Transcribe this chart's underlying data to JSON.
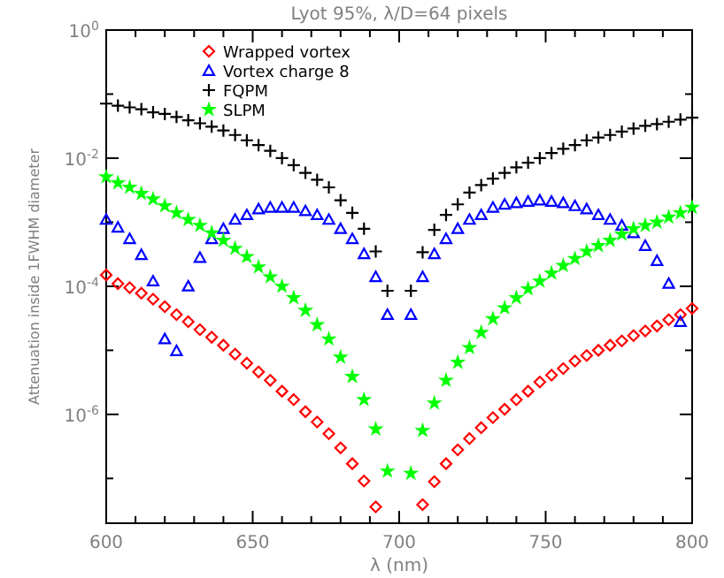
{
  "chart_data": {
    "type": "scatter",
    "title": "Lyot 95%, λ/D=64 pixels",
    "xlabel": "λ (nm)",
    "ylabel": "Attenuation inside 1FWHM diameter",
    "x": [
      600,
      604,
      608,
      612,
      616,
      620,
      624,
      628,
      632,
      636,
      640,
      644,
      648,
      652,
      656,
      660,
      664,
      668,
      672,
      676,
      680,
      684,
      688,
      692,
      696,
      704,
      708,
      712,
      716,
      720,
      724,
      728,
      732,
      736,
      740,
      744,
      748,
      752,
      756,
      760,
      764,
      768,
      772,
      776,
      780,
      784,
      788,
      792,
      796,
      800
    ],
    "series": [
      {
        "name": "Wrapped vortex",
        "color": "#ff0000",
        "marker": "diamond",
        "values": [
          0.00015,
          0.00011,
          9.5e-05,
          7.8e-05,
          6.3e-05,
          4.8e-05,
          3.6e-05,
          2.8e-05,
          2.1e-05,
          1.6e-05,
          1.2e-05,
          8.7e-06,
          6.3e-06,
          4.6e-06,
          3.4e-06,
          2.3e-06,
          1.7e-06,
          1.1e-06,
          7.6e-07,
          5e-07,
          3e-07,
          1.7e-07,
          9.1e-08,
          3.6e-08,
          null,
          null,
          3.9e-08,
          8.9e-08,
          1.7e-07,
          2.8e-07,
          4.2e-07,
          6.2e-07,
          8.9e-07,
          1.2e-06,
          1.7e-06,
          2.3e-06,
          3.2e-06,
          4.1e-06,
          5.2e-06,
          6.8e-06,
          8.3e-06,
          1e-05,
          1.2e-05,
          1.4e-05,
          1.7e-05,
          2e-05,
          2.4e-05,
          3e-05,
          3.6e-05,
          4.5e-05
        ]
      },
      {
        "name": "Vortex charge 8",
        "color": "#0000ff",
        "marker": "triangle",
        "values": [
          0.0011,
          0.00083,
          0.00055,
          0.00031,
          0.00012,
          1.5e-05,
          9.8e-06,
          0.0001,
          0.00028,
          0.00055,
          0.00079,
          0.0011,
          0.0013,
          0.0016,
          0.0017,
          0.0017,
          0.0017,
          0.0015,
          0.0013,
          0.0011,
          0.00079,
          0.00055,
          0.00032,
          0.00014,
          3.6e-05,
          3.6e-05,
          0.00014,
          0.00032,
          0.00055,
          0.00079,
          0.0011,
          0.0013,
          0.0017,
          0.0019,
          0.002,
          0.0021,
          0.0022,
          0.0021,
          0.002,
          0.0018,
          0.0016,
          0.0013,
          0.0011,
          0.00089,
          0.00068,
          0.00043,
          0.00025,
          0.00011,
          2.8e-05,
          null
        ]
      },
      {
        "name": "FQPM",
        "color": "#000000",
        "marker": "cross",
        "values": [
          0.071,
          0.066,
          0.062,
          0.058,
          0.052,
          0.049,
          0.044,
          0.039,
          0.035,
          0.031,
          0.027,
          0.023,
          0.019,
          0.016,
          0.013,
          0.01,
          0.0078,
          0.0059,
          0.0046,
          0.0035,
          0.0022,
          0.0014,
          0.00079,
          0.00035,
          8.5e-05,
          8.5e-05,
          0.00034,
          0.00076,
          0.0013,
          0.0019,
          0.0029,
          0.0038,
          0.0048,
          0.0059,
          0.0072,
          0.0085,
          0.01,
          0.012,
          0.014,
          0.016,
          0.019,
          0.021,
          0.023,
          0.026,
          0.029,
          0.032,
          0.034,
          0.037,
          0.04,
          0.043
        ]
      },
      {
        "name": "SLPM",
        "color": "#00ff00",
        "marker": "star",
        "values": [
          0.0051,
          0.0041,
          0.0035,
          0.0028,
          0.0023,
          0.0018,
          0.0014,
          0.0011,
          0.00089,
          0.00068,
          0.00052,
          0.00039,
          0.00029,
          0.0002,
          0.00014,
          0.0001,
          6.6e-05,
          4.2e-05,
          2.5e-05,
          1.5e-05,
          7.8e-06,
          3.9e-06,
          1.7e-06,
          5.9e-07,
          1.3e-07,
          1.2e-07,
          5.6e-07,
          1.5e-06,
          3.4e-06,
          6.5e-06,
          1.1e-05,
          1.9e-05,
          3.1e-05,
          4.6e-05,
          6.6e-05,
          9.1e-05,
          0.00012,
          0.00016,
          0.00021,
          0.00027,
          0.00035,
          0.00043,
          0.00052,
          0.00065,
          0.00079,
          0.00089,
          0.001,
          0.0012,
          0.0014,
          0.0017
        ]
      }
    ],
    "xlim": [
      600,
      800
    ],
    "xticks": [
      600,
      {
        "value": 610,
        "label": null
      },
      {
        "value": 620,
        "label": null
      },
      {
        "value": 630,
        "label": null
      },
      {
        "value": 640,
        "label": null
      },
      650,
      {
        "value": 660,
        "label": null
      },
      {
        "value": 670,
        "label": null
      },
      {
        "value": 680,
        "label": null
      },
      {
        "value": 690,
        "label": null
      },
      700,
      {
        "value": 710,
        "label": null
      },
      {
        "value": 720,
        "label": null
      },
      {
        "value": 730,
        "label": null
      },
      {
        "value": 740,
        "label": null
      },
      750,
      {
        "value": 760,
        "label": null
      },
      {
        "value": 770,
        "label": null
      },
      {
        "value": 780,
        "label": null
      },
      {
        "value": 790,
        "label": null
      },
      800
    ],
    "ylim": [
      2e-08,
      1
    ],
    "yticks": [
      {
        "value": 1e-07,
        "label": null
      },
      {
        "value": 1e-06,
        "label": "10$^{-6}$"
      },
      {
        "value": 1e-05,
        "label": null
      },
      {
        "value": 0.0001,
        "label": "10$^{-4}$"
      },
      {
        "value": 0.001,
        "label": null
      },
      {
        "value": 0.01,
        "label": "10$^{-2}$"
      },
      {
        "value": 0.1,
        "label": null
      },
      {
        "value": 1,
        "label": "10$^{0}$"
      }
    ],
    "log": "y",
    "grid": false,
    "legend": "top left"
  }
}
